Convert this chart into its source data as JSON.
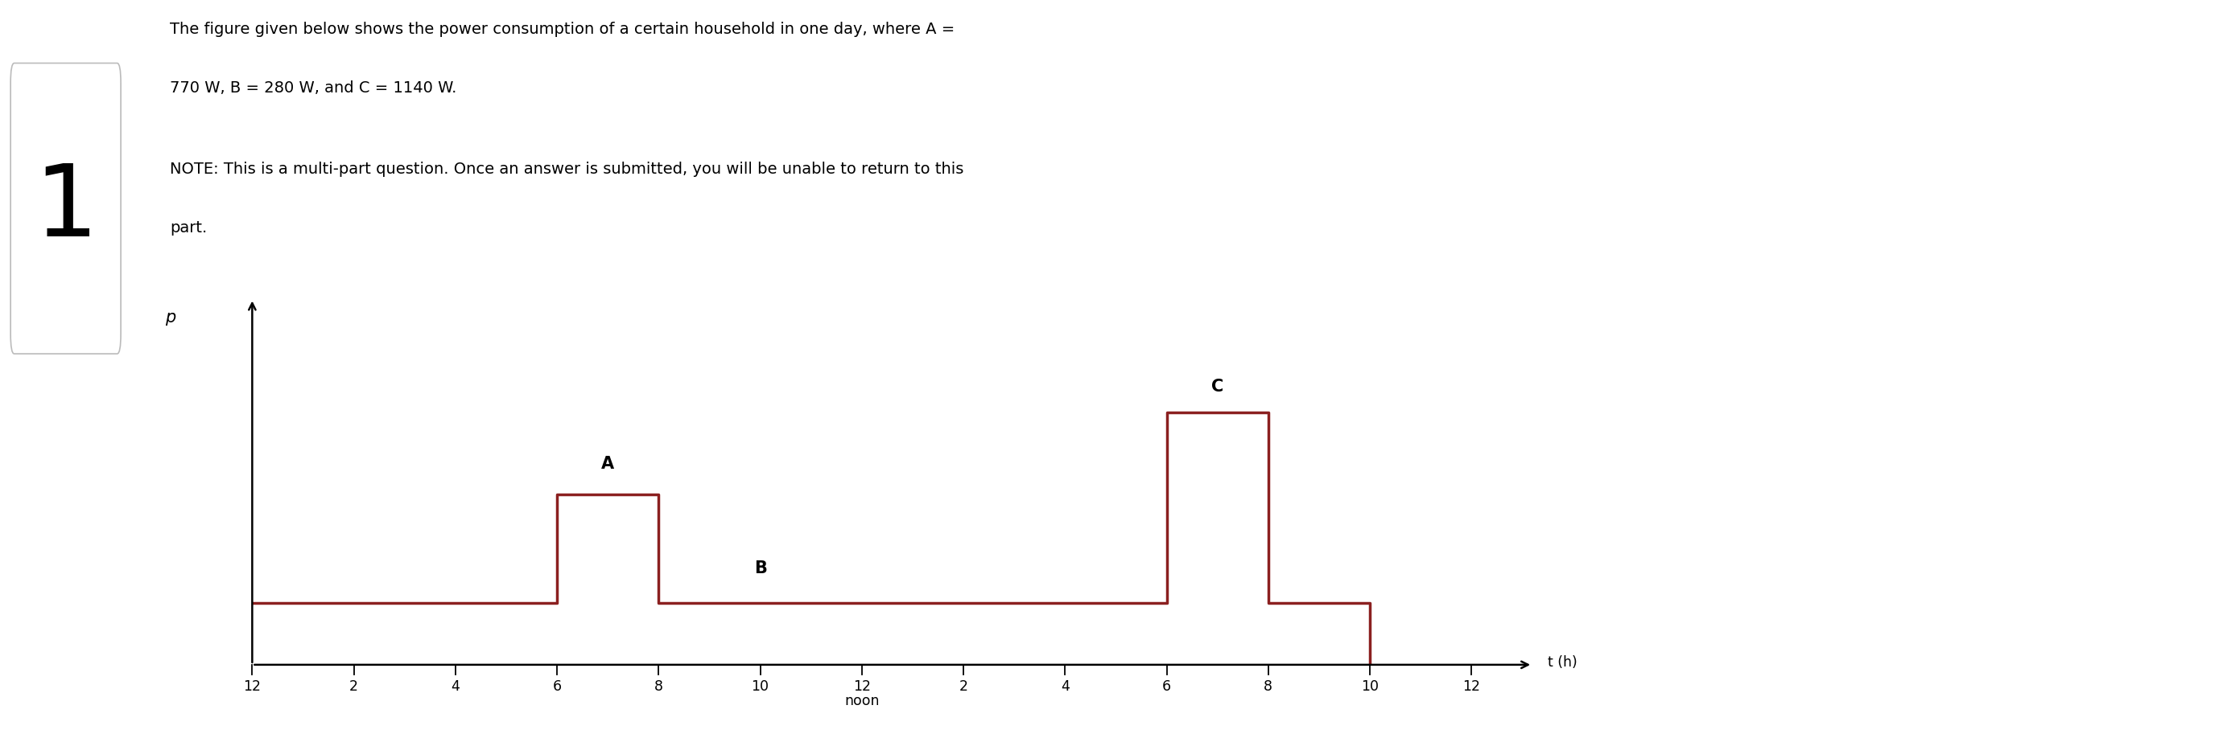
{
  "title_line1": "The figure given below shows the power consumption of a certain household in one day, where A =",
  "title_line2": "770 W, B = 280 W, and C = 1140 W.",
  "note_line1": "NOTE: This is a multi-part question. Once an answer is submitted, you will be unable to return to this",
  "note_line2": "part.",
  "A": 770,
  "B": 280,
  "C": 1140,
  "ylabel": "p",
  "xlabel": "t (h)",
  "xlabel_noon": "noon",
  "label_A": "A",
  "label_B": "B",
  "label_C": "C",
  "step_color": "#8B2020",
  "step_linewidth": 2.5,
  "background_color": "#ffffff",
  "x_tick_labels": [
    "12",
    "2",
    "4",
    "6",
    "8",
    "10",
    "12",
    "2",
    "4",
    "6",
    "8",
    "10",
    "12"
  ],
  "x_tick_positions": [
    0,
    2,
    4,
    6,
    8,
    10,
    12,
    14,
    16,
    18,
    20,
    22,
    24
  ],
  "figure_number": "1",
  "divider_color": "#4472C4",
  "text_fontsize": 14,
  "axis_label_fontsize": 15,
  "annotation_fontsize": 15
}
